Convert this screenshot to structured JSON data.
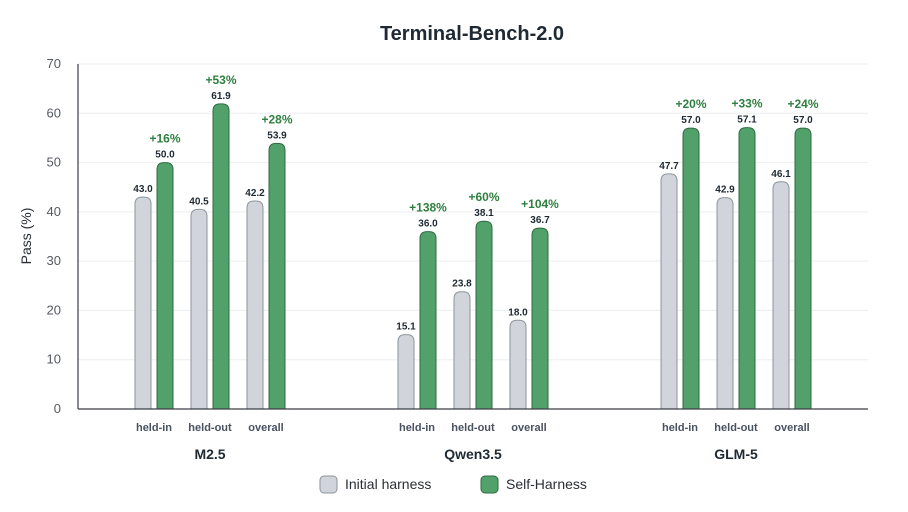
{
  "chart_data": {
    "type": "bar",
    "title": "Terminal-Bench-2.0",
    "ylabel": "Pass (%)",
    "xlabel": "",
    "ylim": [
      0,
      70
    ],
    "yticks": [
      0,
      10,
      20,
      30,
      40,
      50,
      60,
      70
    ],
    "grid": true,
    "legend_position": "bottom-center",
    "series_order": [
      "Initial harness",
      "Self-Harness"
    ],
    "colors": {
      "initial": "#d1d5db",
      "initial_stroke": "#8d949c",
      "self": "#52a16a",
      "self_stroke": "#2e6b41",
      "improvement": "#2f8040",
      "grid": "#eceef0",
      "axis": "#3a3f45"
    },
    "groups": [
      {
        "name": "M2.5",
        "splits": [
          {
            "label": "held-in",
            "initial": 43.0,
            "self": 50.0,
            "initial_label": "43.0",
            "self_label": "50.0",
            "improvement": "+16%"
          },
          {
            "label": "held-out",
            "initial": 40.5,
            "self": 61.9,
            "initial_label": "40.5",
            "self_label": "61.9",
            "improvement": "+53%"
          },
          {
            "label": "overall",
            "initial": 42.2,
            "self": 53.9,
            "initial_label": "42.2",
            "self_label": "53.9",
            "improvement": "+28%"
          }
        ]
      },
      {
        "name": "Qwen3.5",
        "splits": [
          {
            "label": "held-in",
            "initial": 15.1,
            "self": 36.0,
            "initial_label": "15.1",
            "self_label": "36.0",
            "improvement": "+138%"
          },
          {
            "label": "held-out",
            "initial": 23.8,
            "self": 38.1,
            "initial_label": "23.8",
            "self_label": "38.1",
            "improvement": "+60%"
          },
          {
            "label": "overall",
            "initial": 18.0,
            "self": 36.7,
            "initial_label": "18.0",
            "self_label": "36.7",
            "improvement": "+104%"
          }
        ]
      },
      {
        "name": "GLM-5",
        "splits": [
          {
            "label": "held-in",
            "initial": 47.7,
            "self": 57.0,
            "initial_label": "47.7",
            "self_label": "57.0",
            "improvement": "+20%"
          },
          {
            "label": "held-out",
            "initial": 42.9,
            "self": 57.1,
            "initial_label": "42.9",
            "self_label": "57.1",
            "improvement": "+33%"
          },
          {
            "label": "overall",
            "initial": 46.1,
            "self": 57.0,
            "initial_label": "46.1",
            "self_label": "57.0",
            "improvement": "+24%"
          }
        ]
      }
    ],
    "legend": [
      {
        "key": "initial",
        "label": "Initial harness"
      },
      {
        "key": "self",
        "label": "Self-Harness"
      }
    ]
  }
}
